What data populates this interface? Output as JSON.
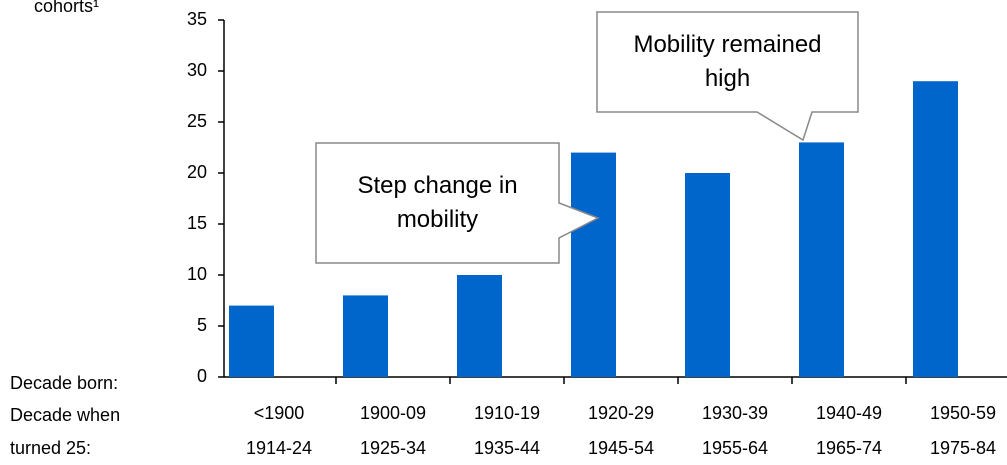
{
  "chart_data": {
    "type": "bar",
    "y_label": "cohorts¹",
    "x_row_labels": [
      "Decade born:",
      "Decade when turned 25:"
    ],
    "categories": [
      "<1900",
      "1900-09",
      "1910-19",
      "1920-29",
      "1930-39",
      "1940-49",
      "1950-59"
    ],
    "categories_turned_25": [
      "1914-24",
      "1925-34",
      "1935-44",
      "1945-54",
      "1955-64",
      "1965-74",
      "1975-84"
    ],
    "values": [
      7,
      8,
      10,
      22,
      20,
      23,
      29
    ],
    "color": "#0066cc",
    "ylim": [
      0,
      35
    ],
    "yticks": [
      0,
      5,
      10,
      15,
      20,
      25,
      30,
      35
    ],
    "grid": false,
    "annotations": [
      "Step change in mobility",
      "Mobility remained high"
    ]
  }
}
